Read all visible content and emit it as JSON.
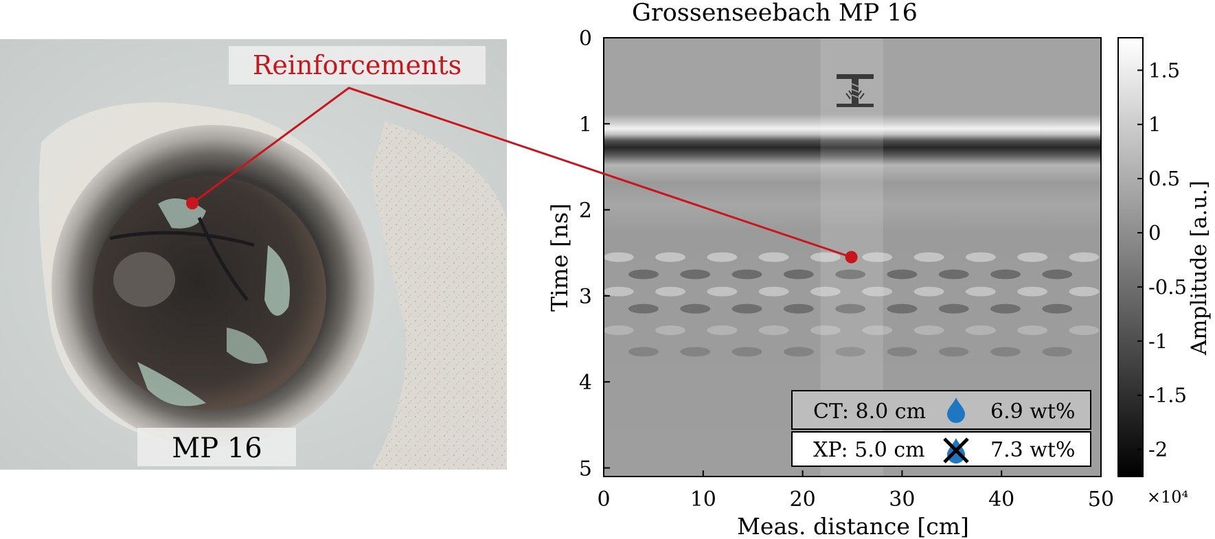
{
  "photo": {
    "label_box": "MP 16",
    "callout": "Reinforcements",
    "callout_color": "#c8161d"
  },
  "chart_data": {
    "type": "heatmap",
    "title": "Grossenseebach MP 16",
    "xlabel": "Meas. distance [cm]",
    "ylabel": "Time [ns]",
    "xlim": [
      0,
      50
    ],
    "ylim": [
      5.1,
      0
    ],
    "xticks": [
      "0",
      "10",
      "20",
      "30",
      "40",
      "50"
    ],
    "yticks": [
      "0",
      "1",
      "2",
      "3",
      "4",
      "5"
    ],
    "colorbar": {
      "label": "Amplitude [a.u.]",
      "range": [
        -2.25,
        1.8
      ],
      "ticks": [
        "1.5",
        "1",
        "0.5",
        "0",
        "-0.5",
        "-1",
        "-1.5",
        "-2"
      ],
      "exponent": "×10⁴",
      "colormap": "gray"
    },
    "highlight_band_x": [
      21.8,
      28.1
    ],
    "marker_point": {
      "x": 24.9,
      "y": 2.55
    },
    "legend": [
      {
        "label": "CT: 8.0 cm",
        "value": "6.9 wt%",
        "icon": "water-drop-icon"
      },
      {
        "label": "XP: 5.0 cm",
        "value": "7.3 wt%",
        "icon": "crossed-water-drop-icon"
      }
    ],
    "drop_color": "#1f77c4",
    "grid": false
  }
}
